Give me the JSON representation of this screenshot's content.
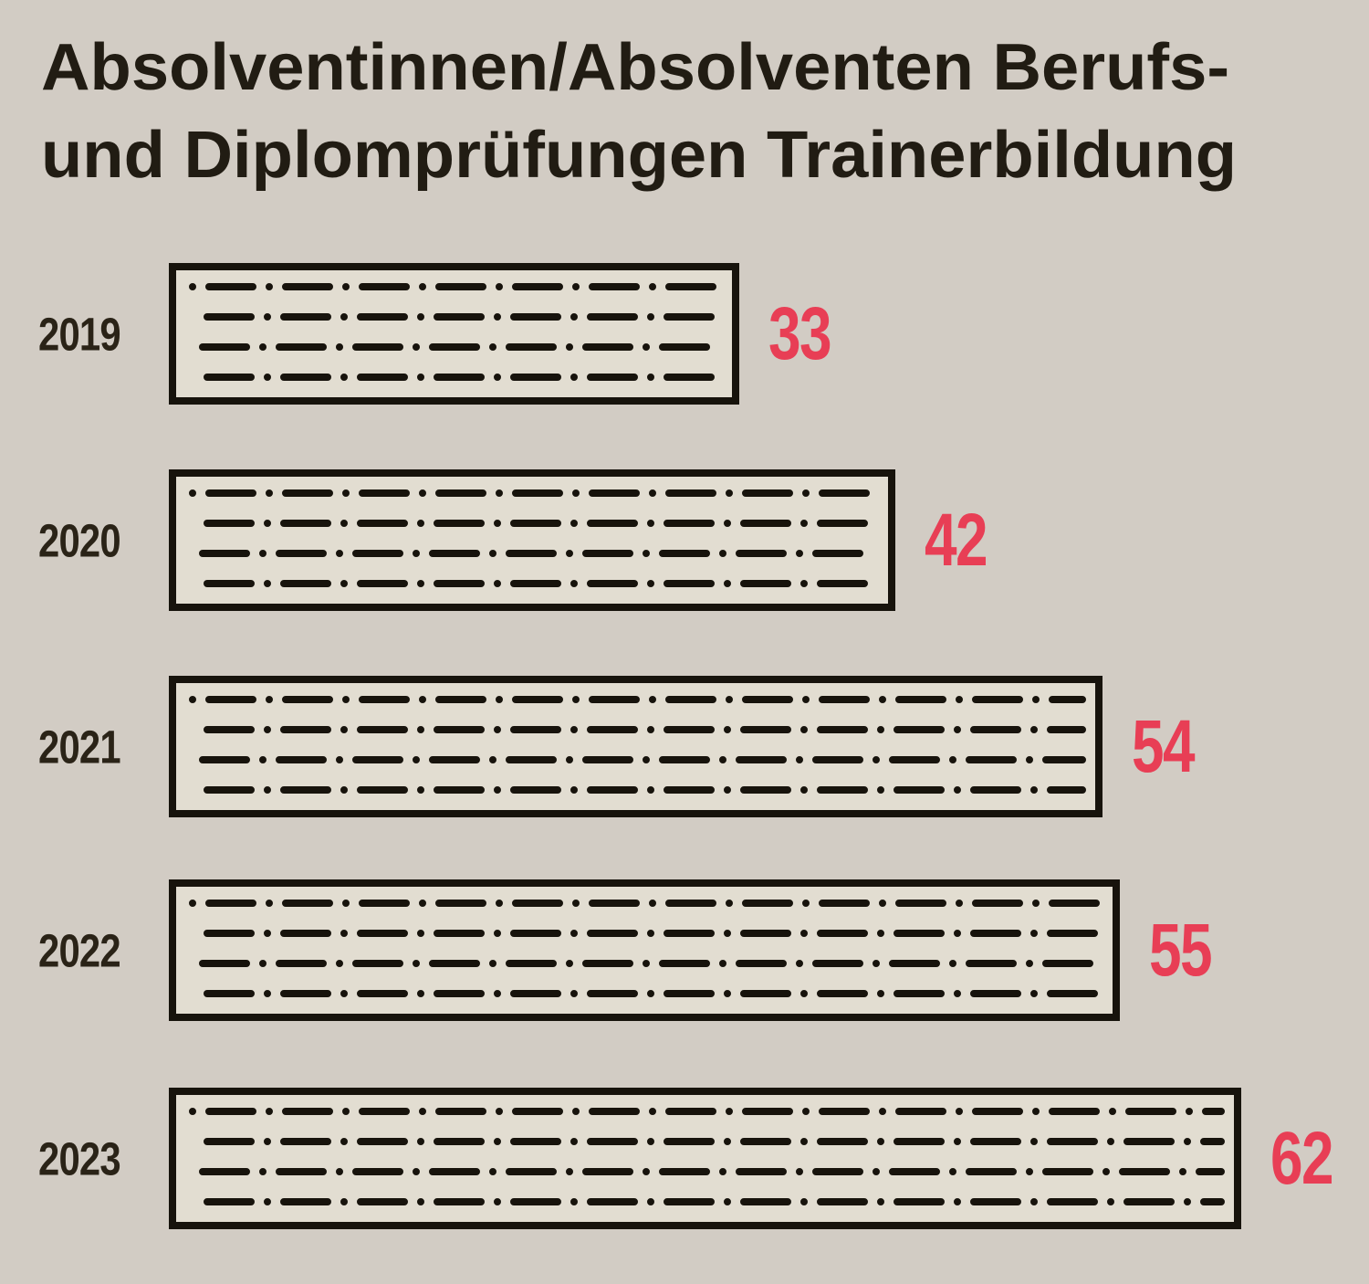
{
  "title": {
    "line1": "Absolventinnen/Absolventen Berufs-",
    "line2": "und Diplomprüfungen Trainerbildung"
  },
  "colors": {
    "background": "#d2ccc4",
    "bar_fill": "#e2ddd1",
    "ink": "#17130c",
    "year_label": "#2a2317",
    "value_label": "#e83e55"
  },
  "chart_data": {
    "type": "bar",
    "orientation": "horizontal",
    "title": "Absolventinnen/Absolventen Berufs- und Diplomprüfungen Trainerbildung",
    "categories": [
      "2019",
      "2020",
      "2021",
      "2022",
      "2023"
    ],
    "values": [
      33,
      42,
      54,
      55,
      62
    ],
    "xlabel": "",
    "ylabel": "",
    "xlim": [
      0,
      62
    ],
    "grid": false,
    "legend": false,
    "bar_style": "black outlined rectangle filled with 4 rows of dash-dot (morse-like) hatch",
    "value_labels_position": "right of bar, red"
  }
}
